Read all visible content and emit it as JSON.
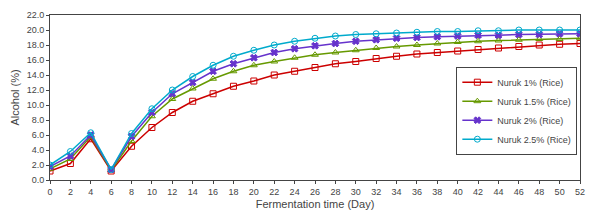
{
  "chart_data": {
    "type": "line",
    "x_label": "Fermentation time (Day)",
    "y_label": "Alcohol (%)",
    "x": [
      0,
      2,
      4,
      6,
      8,
      10,
      12,
      14,
      16,
      18,
      20,
      22,
      24,
      26,
      28,
      30,
      32,
      34,
      36,
      38,
      40,
      42,
      44,
      46,
      48,
      50,
      52
    ],
    "series": [
      {
        "name": "Nuruk 1% (Rice)",
        "color": "#cc0000",
        "marker": "square-open",
        "values": [
          1.2,
          2.2,
          5.5,
          1.2,
          4.5,
          7.0,
          9.0,
          10.5,
          11.5,
          12.5,
          13.2,
          14.0,
          14.5,
          15.0,
          15.5,
          15.8,
          16.2,
          16.5,
          16.8,
          17.0,
          17.2,
          17.4,
          17.6,
          17.8,
          18.0,
          18.1,
          18.2
        ]
      },
      {
        "name": "Nuruk 1.5% (Rice)",
        "color": "#669900",
        "marker": "triangle-up-open",
        "values": [
          1.5,
          2.8,
          5.8,
          1.3,
          5.2,
          8.5,
          10.8,
          12.2,
          13.5,
          14.5,
          15.3,
          15.8,
          16.3,
          16.7,
          17.0,
          17.3,
          17.6,
          17.8,
          18.0,
          18.2,
          18.4,
          18.5,
          18.6,
          18.7,
          18.8,
          18.8,
          18.9
        ]
      },
      {
        "name": "Nuruk 2% (Rice)",
        "color": "#6633cc",
        "marker": "x",
        "values": [
          1.8,
          3.2,
          6.0,
          1.4,
          5.8,
          9.0,
          11.5,
          13.0,
          14.5,
          15.5,
          16.3,
          17.0,
          17.5,
          17.9,
          18.2,
          18.5,
          18.7,
          18.9,
          19.0,
          19.1,
          19.2,
          19.3,
          19.3,
          19.4,
          19.4,
          19.5,
          19.5
        ]
      },
      {
        "name": "Nuruk 2.5% (Rice)",
        "color": "#00aacc",
        "marker": "circle-open",
        "values": [
          2.0,
          3.8,
          6.3,
          1.4,
          6.2,
          9.5,
          12.0,
          13.8,
          15.3,
          16.5,
          17.3,
          18.0,
          18.5,
          18.9,
          19.2,
          19.4,
          19.5,
          19.6,
          19.7,
          19.8,
          19.8,
          19.9,
          19.9,
          20.0,
          20.0,
          20.0,
          20.0
        ]
      }
    ],
    "xlim": [
      0,
      52
    ],
    "xticks": [
      0,
      2,
      4,
      6,
      8,
      10,
      12,
      14,
      16,
      18,
      20,
      22,
      24,
      26,
      28,
      30,
      32,
      34,
      36,
      38,
      40,
      42,
      44,
      46,
      48,
      50,
      52
    ],
    "ylim": [
      0.0,
      22.0
    ],
    "yticks": [
      {
        "value": 0.0,
        "label": "0.0"
      },
      {
        "value": 2.0,
        "label": "2.0"
      },
      {
        "value": 4.0,
        "label": "4.0"
      },
      {
        "value": 6.0,
        "label": "6.0"
      },
      {
        "value": 8.0,
        "label": "8.0"
      },
      {
        "value": 10.0,
        "label": "10.0"
      },
      {
        "value": 12.0,
        "label": "12.0"
      },
      {
        "value": 14.0,
        "label": "14.0"
      },
      {
        "value": 16.0,
        "label": "16.0"
      },
      {
        "value": 18.0,
        "label": "18.0"
      },
      {
        "value": 20.0,
        "label": "20.0"
      },
      {
        "value": 22.0,
        "label": "22.0"
      }
    ],
    "grid": false,
    "legend": "right"
  }
}
